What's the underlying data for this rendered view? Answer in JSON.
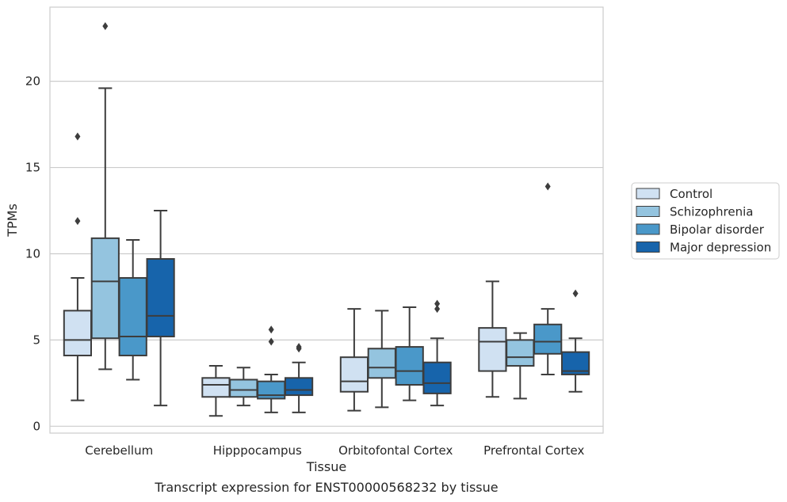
{
  "chart_data": {
    "type": "box",
    "caption": "Transcript expression for ENST00000568232 by tissue",
    "xlabel": "Tissue",
    "ylabel": "TPMs",
    "ylim": [
      -0.4,
      24.3
    ],
    "yticks": [
      0,
      5,
      10,
      15,
      20
    ],
    "grid": "horizontal",
    "legend_placement": "right",
    "categories": [
      "Cerebellum",
      "Hipppocampus",
      "Orbitofontal Cortex",
      "Prefrontal Cortex"
    ],
    "series": [
      {
        "name": "Control",
        "color": "#d0e1f2",
        "boxes": [
          {
            "whisker_low": 1.5,
            "q1": 4.1,
            "median": 5.0,
            "q3": 6.7,
            "whisker_high": 8.6,
            "outliers": [
              11.9,
              16.8
            ]
          },
          {
            "whisker_low": 0.6,
            "q1": 1.7,
            "median": 2.4,
            "q3": 2.8,
            "whisker_high": 3.5,
            "outliers": []
          },
          {
            "whisker_low": 0.9,
            "q1": 2.0,
            "median": 2.6,
            "q3": 4.0,
            "whisker_high": 6.8,
            "outliers": []
          },
          {
            "whisker_low": 1.7,
            "q1": 3.2,
            "median": 4.9,
            "q3": 5.7,
            "whisker_high": 8.4,
            "outliers": []
          }
        ]
      },
      {
        "name": "Schizophrenia",
        "color": "#94c4df",
        "boxes": [
          {
            "whisker_low": 3.3,
            "q1": 5.1,
            "median": 8.4,
            "q3": 10.9,
            "whisker_high": 19.6,
            "outliers": [
              23.2
            ]
          },
          {
            "whisker_low": 1.2,
            "q1": 1.7,
            "median": 2.1,
            "q3": 2.7,
            "whisker_high": 3.4,
            "outliers": []
          },
          {
            "whisker_low": 1.1,
            "q1": 2.8,
            "median": 3.4,
            "q3": 4.5,
            "whisker_high": 6.7,
            "outliers": []
          },
          {
            "whisker_low": 1.6,
            "q1": 3.5,
            "median": 4.0,
            "q3": 5.0,
            "whisker_high": 5.4,
            "outliers": []
          }
        ]
      },
      {
        "name": "Bipolar disorder",
        "color": "#4a98c9",
        "boxes": [
          {
            "whisker_low": 2.7,
            "q1": 4.1,
            "median": 5.2,
            "q3": 8.6,
            "whisker_high": 10.8,
            "outliers": []
          },
          {
            "whisker_low": 0.8,
            "q1": 1.6,
            "median": 1.8,
            "q3": 2.6,
            "whisker_high": 3.0,
            "outliers": [
              4.9,
              5.6
            ]
          },
          {
            "whisker_low": 1.5,
            "q1": 2.4,
            "median": 3.2,
            "q3": 4.6,
            "whisker_high": 6.9,
            "outliers": []
          },
          {
            "whisker_low": 3.0,
            "q1": 4.2,
            "median": 4.9,
            "q3": 5.9,
            "whisker_high": 6.8,
            "outliers": [
              13.9
            ]
          }
        ]
      },
      {
        "name": "Major depression",
        "color": "#1764ab",
        "boxes": [
          {
            "whisker_low": 1.2,
            "q1": 5.2,
            "median": 6.4,
            "q3": 9.7,
            "whisker_high": 12.5,
            "outliers": []
          },
          {
            "whisker_low": 0.8,
            "q1": 1.8,
            "median": 2.1,
            "q3": 2.8,
            "whisker_high": 3.7,
            "outliers": [
              4.5,
              4.6
            ]
          },
          {
            "whisker_low": 1.2,
            "q1": 1.9,
            "median": 2.5,
            "q3": 3.7,
            "whisker_high": 5.1,
            "outliers": [
              6.8,
              7.1
            ]
          },
          {
            "whisker_low": 2.0,
            "q1": 3.0,
            "median": 3.2,
            "q3": 4.3,
            "whisker_high": 5.1,
            "outliers": [
              7.7
            ]
          }
        ]
      }
    ]
  }
}
